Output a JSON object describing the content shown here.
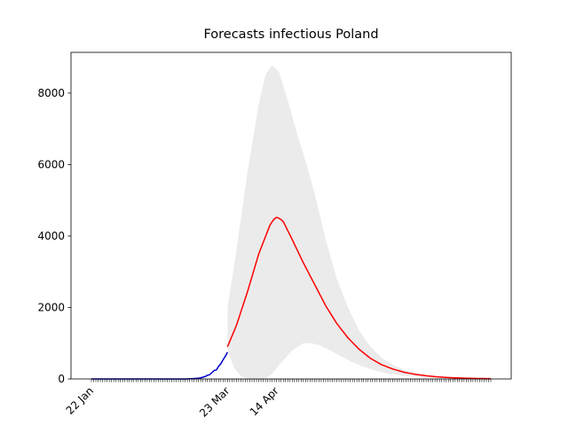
{
  "chart_data": {
    "type": "line",
    "title": "Forecasts infectious Poland",
    "categories": [
      "22 Jan",
      null,
      null,
      null,
      null,
      null,
      null,
      null,
      null,
      null,
      null,
      null,
      null,
      null,
      null,
      null,
      null,
      null,
      null,
      null,
      null,
      null,
      null,
      null,
      null,
      null,
      null,
      null,
      null,
      null,
      null,
      null,
      null,
      null,
      null,
      null,
      null,
      null,
      null,
      null,
      null,
      null,
      null,
      null,
      null,
      null,
      null,
      null,
      null,
      null,
      null,
      null,
      null,
      null,
      null,
      null,
      null,
      null,
      null,
      null,
      null,
      "23 Mar",
      null,
      null,
      null,
      null,
      null,
      null,
      null,
      null,
      null,
      null,
      null,
      null,
      null,
      null,
      null,
      null,
      null,
      null,
      null,
      null,
      null,
      "14 Apr",
      null,
      null,
      null,
      null,
      null,
      null,
      null,
      null,
      null,
      null,
      null,
      null,
      null,
      null,
      null,
      null,
      null,
      null,
      null,
      null,
      null,
      null,
      null,
      null,
      null,
      null,
      null,
      null,
      null,
      null,
      null,
      null,
      null,
      null,
      null,
      null,
      null,
      null,
      null,
      null,
      null,
      null,
      null,
      null,
      null,
      null,
      null,
      null,
      null,
      null,
      null,
      null,
      null,
      null,
      null,
      null,
      null,
      null,
      null,
      null,
      null,
      null,
      null,
      null,
      null,
      null,
      null,
      null,
      null,
      null,
      null,
      null,
      null,
      null,
      null,
      null,
      null,
      null,
      null,
      null,
      null,
      null,
      null,
      null,
      null,
      null,
      null,
      null,
      null,
      null,
      null,
      null,
      null,
      null,
      null,
      null
    ],
    "series": [
      {
        "color": "#0000cc",
        "values": [
          0,
          0,
          0,
          0,
          0,
          0,
          0,
          0,
          0,
          0,
          0,
          0,
          0,
          0,
          0,
          0,
          0,
          0,
          0,
          0,
          0,
          0,
          0,
          0,
          0,
          0,
          0,
          0,
          0,
          0,
          0,
          0,
          0,
          0,
          0,
          0,
          0,
          0,
          0,
          0,
          0,
          0,
          1,
          1,
          5,
          6,
          11,
          16,
          22,
          31,
          49,
          68,
          103,
          119,
          177,
          238,
          251,
          355,
          425,
          536,
          634,
          749,
          null,
          null,
          null,
          null,
          null,
          null,
          null,
          null,
          null,
          null,
          null,
          null,
          null,
          null,
          null,
          null,
          null,
          null,
          null,
          null,
          null,
          null,
          null,
          null,
          null,
          null,
          null,
          null,
          null,
          null,
          null,
          null,
          null,
          null,
          null,
          null,
          null,
          null,
          null,
          null,
          null,
          null,
          null,
          null,
          null,
          null,
          null,
          null,
          null,
          null,
          null,
          null,
          null,
          null,
          null,
          null,
          null,
          null,
          null,
          null,
          null,
          null,
          null,
          null,
          null,
          null,
          null,
          null,
          null,
          null,
          null,
          null,
          null,
          null,
          null,
          null,
          null,
          null,
          null,
          null,
          null,
          null,
          null,
          null,
          null,
          null,
          null,
          null,
          null,
          null,
          null,
          null,
          null,
          null,
          null,
          null,
          null,
          null,
          null,
          null,
          null,
          null,
          null,
          null,
          null,
          null,
          null,
          null,
          null,
          null,
          null,
          null,
          null,
          null,
          null,
          null,
          null,
          null
        ]
      },
      {
        "color": "#ff0000",
        "values": [
          null,
          null,
          null,
          null,
          null,
          null,
          null,
          null,
          null,
          null,
          null,
          null,
          null,
          null,
          null,
          null,
          null,
          null,
          null,
          null,
          null,
          null,
          null,
          null,
          null,
          null,
          null,
          null,
          null,
          null,
          null,
          null,
          null,
          null,
          null,
          null,
          null,
          null,
          null,
          null,
          null,
          null,
          null,
          null,
          null,
          null,
          null,
          null,
          null,
          null,
          null,
          null,
          null,
          null,
          null,
          null,
          null,
          null,
          null,
          null,
          null,
          900,
          1050,
          1200,
          1350,
          1500,
          1690,
          1880,
          2070,
          2260,
          2450,
          2660,
          2870,
          3080,
          3290,
          3500,
          3660,
          3820,
          3980,
          4140,
          4300,
          4400,
          4480,
          4520,
          4500,
          4460,
          4400,
          4280,
          4150,
          4030,
          3900,
          3770,
          3640,
          3510,
          3380,
          3250,
          3130,
          3010,
          2890,
          2770,
          2650,
          2530,
          2410,
          2290,
          2170,
          2050,
          1950,
          1850,
          1750,
          1650,
          1550,
          1470,
          1390,
          1310,
          1230,
          1150,
          1086,
          1022,
          958,
          894,
          830,
          780,
          730,
          680,
          630,
          580,
          544,
          508,
          472,
          436,
          400,
          376,
          352,
          328,
          304,
          280,
          262,
          244,
          226,
          208,
          190,
          178,
          166,
          154,
          142,
          130,
          122,
          114,
          106,
          98,
          90,
          84,
          78,
          72,
          66,
          60,
          56,
          52,
          48,
          44,
          40,
          37,
          35,
          32,
          30,
          27,
          25,
          23,
          22,
          20,
          18,
          17,
          16,
          14,
          13,
          12,
          11,
          10,
          10,
          9
        ]
      }
    ],
    "band": {
      "color": "#ebebeb",
      "upper": [
        null,
        null,
        null,
        null,
        null,
        null,
        null,
        null,
        null,
        null,
        null,
        null,
        null,
        null,
        null,
        null,
        null,
        null,
        null,
        null,
        null,
        null,
        null,
        null,
        null,
        null,
        null,
        null,
        null,
        null,
        null,
        null,
        null,
        null,
        null,
        null,
        null,
        null,
        null,
        null,
        null,
        null,
        null,
        null,
        null,
        null,
        null,
        null,
        null,
        null,
        null,
        null,
        null,
        null,
        null,
        null,
        null,
        null,
        null,
        null,
        null,
        2000,
        2400,
        2800,
        3200,
        3600,
        4040,
        4480,
        4920,
        5360,
        5800,
        6180,
        6560,
        6940,
        7320,
        7700,
        7970,
        8230,
        8500,
        8600,
        8700,
        8780,
        8720,
        8660,
        8600,
        8400,
        8200,
        8000,
        7800,
        7580,
        7350,
        7130,
        6900,
        6700,
        6500,
        6300,
        6100,
        5880,
        5650,
        5430,
        5200,
        4940,
        4680,
        4420,
        4160,
        3900,
        3680,
        3460,
        3240,
        3020,
        2800,
        2640,
        2480,
        2320,
        2160,
        2000,
        1870,
        1740,
        1610,
        1480,
        1350,
        1260,
        1170,
        1080,
        990,
        900,
        840,
        780,
        720,
        660,
        600,
        560,
        520,
        480,
        440,
        400,
        372,
        344,
        316,
        288,
        260,
        242,
        224,
        206,
        188,
        170,
        158,
        146,
        134,
        122,
        110,
        102,
        94,
        86,
        78,
        70,
        65,
        60,
        55,
        50,
        45,
        42,
        39,
        36,
        33,
        30,
        28,
        26,
        24,
        22,
        20,
        19,
        17,
        16,
        14,
        13,
        12,
        11,
        10,
        9
      ],
      "lower": [
        null,
        null,
        null,
        null,
        null,
        null,
        null,
        null,
        null,
        null,
        null,
        null,
        null,
        null,
        null,
        null,
        null,
        null,
        null,
        null,
        null,
        null,
        null,
        null,
        null,
        null,
        null,
        null,
        null,
        null,
        null,
        null,
        null,
        null,
        null,
        null,
        null,
        null,
        null,
        null,
        null,
        null,
        null,
        null,
        null,
        null,
        null,
        null,
        null,
        null,
        null,
        null,
        null,
        null,
        null,
        null,
        null,
        null,
        null,
        null,
        null,
        800,
        630,
        470,
        300,
        230,
        150,
        80,
        55,
        30,
        10,
        5,
        2,
        1,
        0,
        5,
        10,
        15,
        20,
        60,
        100,
        150,
        225,
        300,
        375,
        450,
        520,
        590,
        660,
        730,
        800,
        840,
        880,
        920,
        960,
        1000,
        1003,
        1007,
        1010,
        995,
        980,
        965,
        950,
        920,
        890,
        860,
        830,
        800,
        766,
        732,
        698,
        664,
        630,
        598,
        566,
        534,
        502,
        470,
        444,
        418,
        392,
        366,
        340,
        320,
        300,
        280,
        260,
        240,
        225,
        210,
        195,
        180,
        165,
        155,
        145,
        135,
        125,
        115,
        108,
        101,
        94,
        87,
        80,
        76,
        71,
        67,
        62,
        58,
        54,
        49,
        45,
        43,
        40,
        38,
        35,
        33,
        30,
        28,
        25,
        23,
        20,
        19,
        18,
        17,
        16,
        15,
        14,
        13,
        12,
        11,
        10,
        9,
        9,
        8,
        8,
        7,
        7,
        6,
        6,
        5
      ]
    },
    "ylim": [
      0,
      9140
    ],
    "yticks": [
      0,
      2000,
      4000,
      6000,
      8000
    ]
  }
}
